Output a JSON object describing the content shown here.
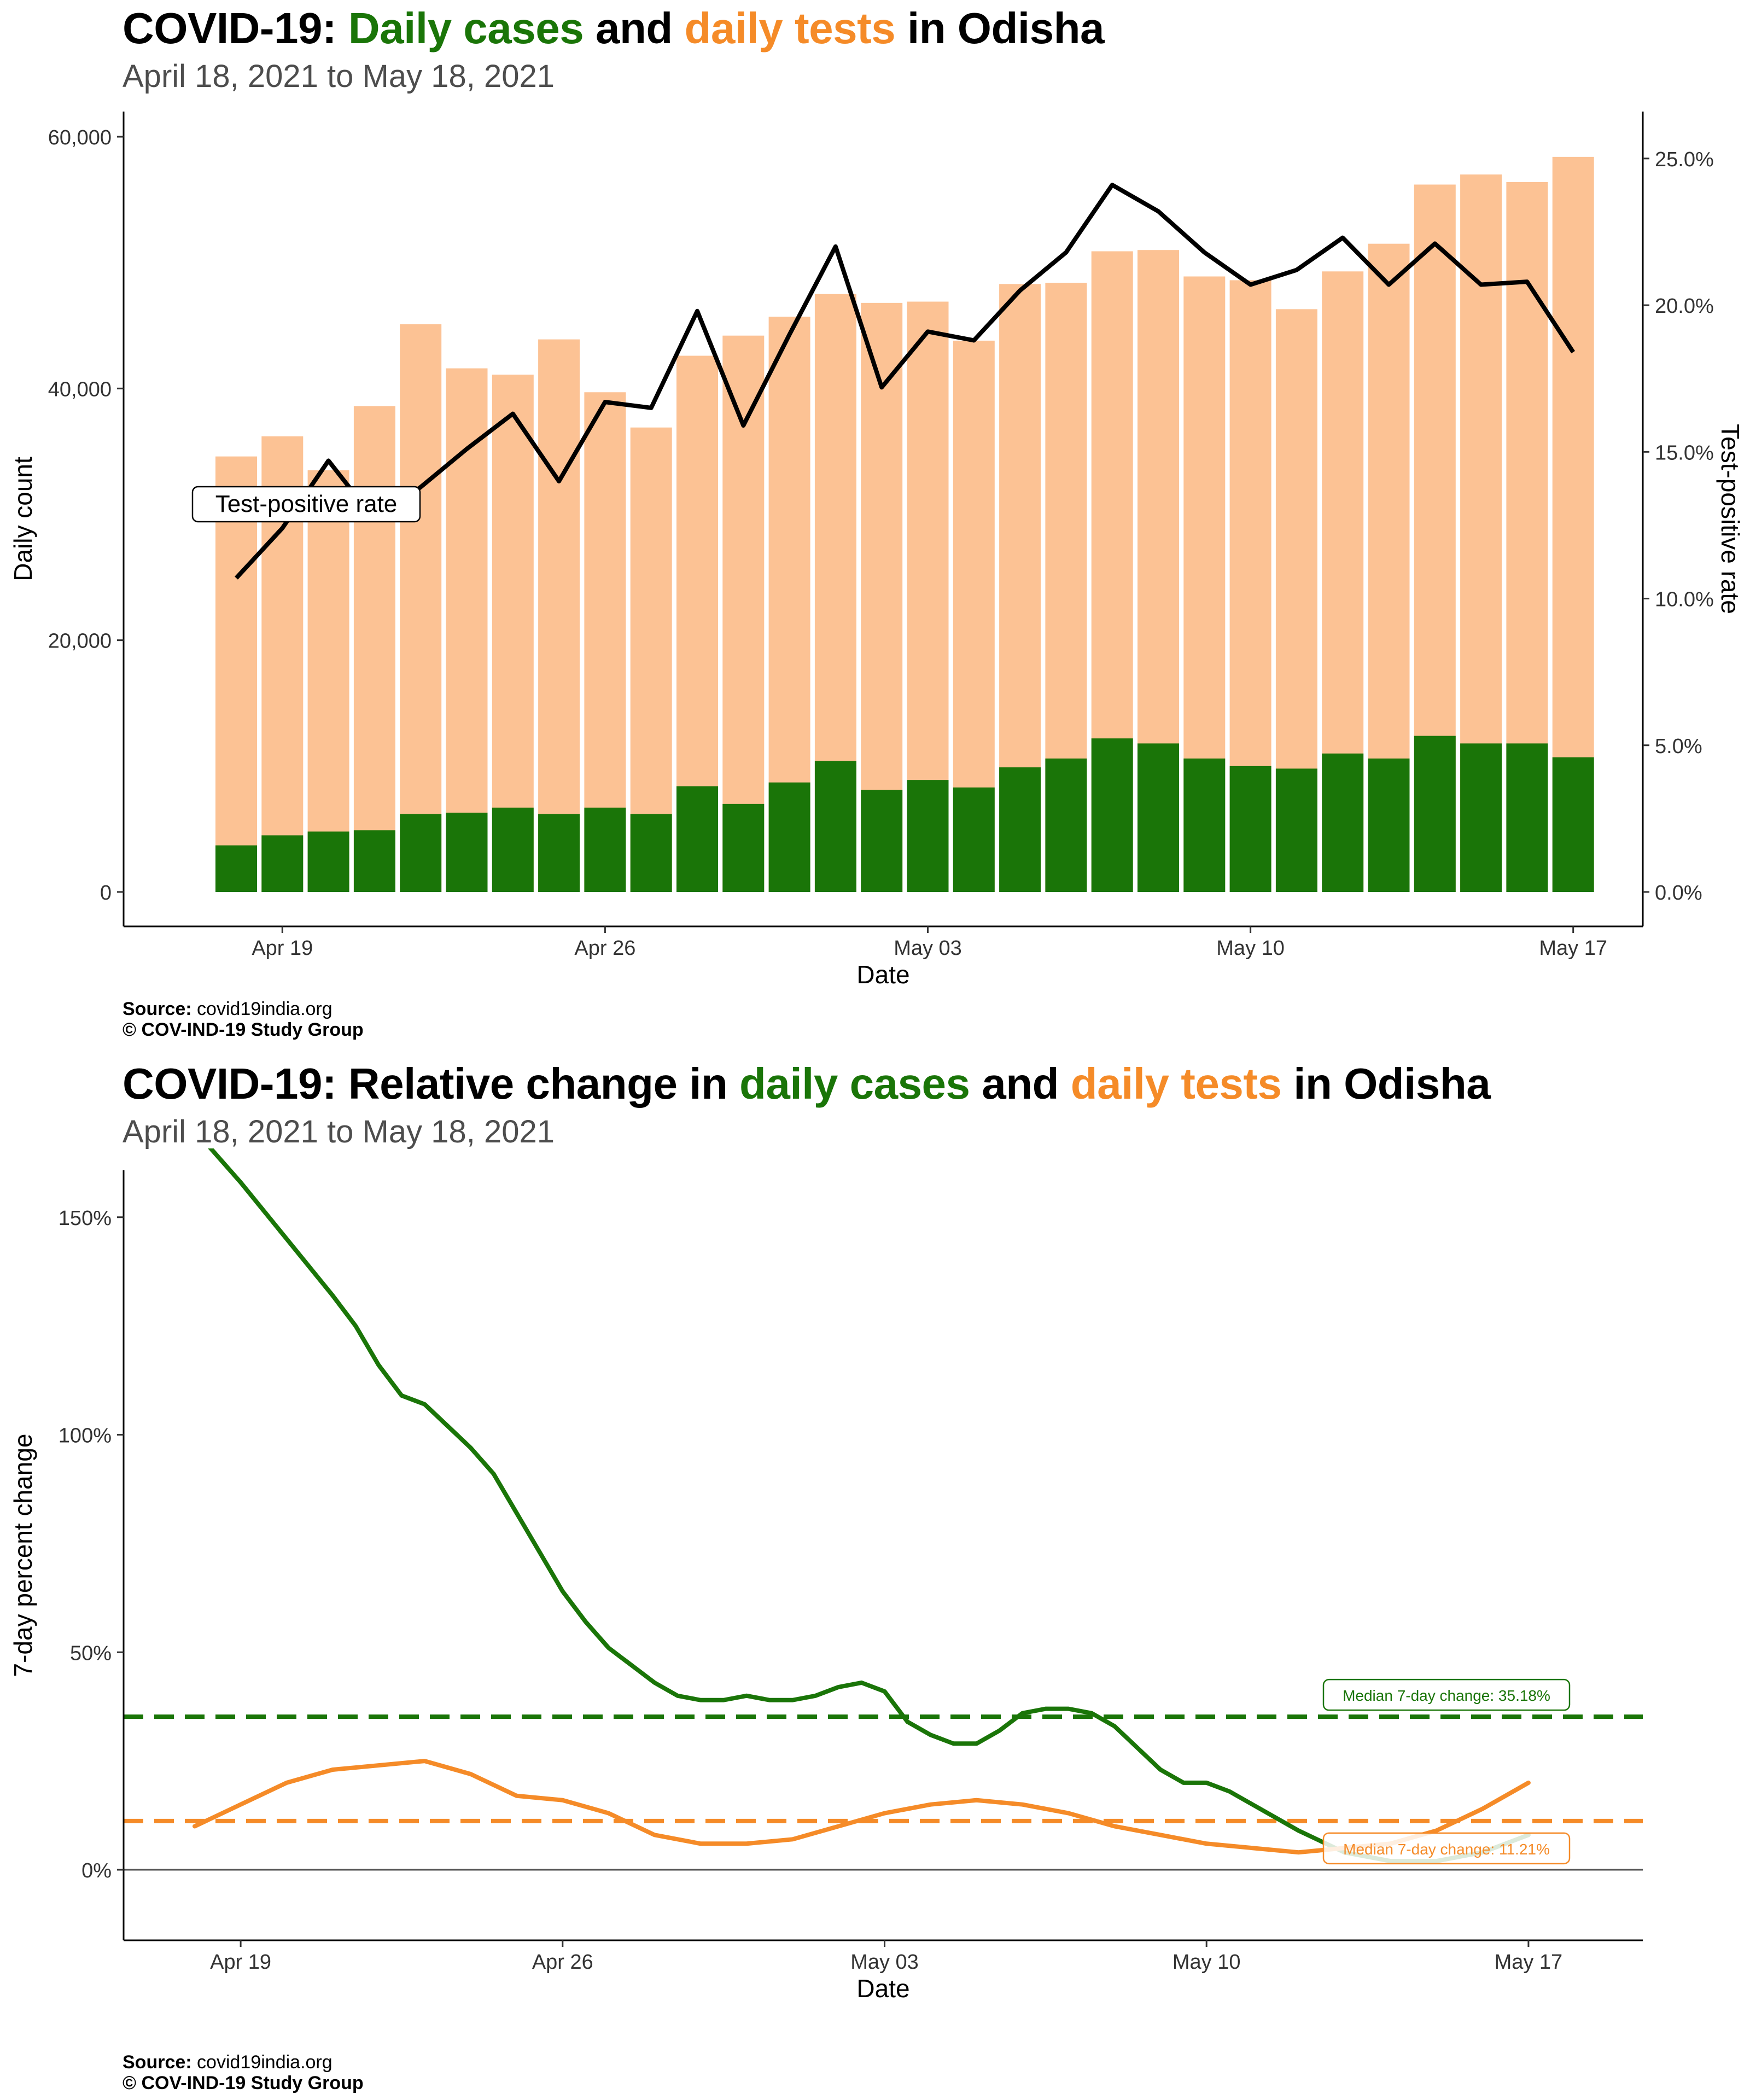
{
  "top": {
    "title": {
      "prefix": "COVID-19: ",
      "cases": "Daily cases",
      "and": " and ",
      "tests": "daily tests",
      "suffix": " in Odisha"
    },
    "subtitle": "April 18, 2021 to May 18, 2021",
    "source_label": "Source:",
    "source_value": "covid19india.org",
    "copyright": "© COV-IND-19 Study Group"
  },
  "bottom": {
    "title": {
      "prefix": "COVID-19: Relative change in ",
      "cases": "daily cases",
      "and": " and ",
      "tests": "daily tests",
      "suffix": " in Odisha"
    },
    "subtitle": "April 18, 2021 to May 18, 2021",
    "source_label": "Source:",
    "source_value": "covid19india.org",
    "copyright": "© COV-IND-19 Study Group"
  },
  "colors": {
    "cases": "#1a7508",
    "tests": "#fcc294",
    "tests_line": "#f58b28",
    "tpr": "#000000"
  },
  "chart_data": [
    {
      "type": "bar",
      "xlabel": "Date",
      "ylabel": "Daily count",
      "y2label": "Test-positive rate",
      "ylim": [
        0,
        62000
      ],
      "y2lim": [
        0,
        0.266
      ],
      "yticks": [
        0,
        20000,
        40000,
        60000
      ],
      "ytick_labels": [
        "0",
        "20,000",
        "40,000",
        "60,000"
      ],
      "y2ticks": [
        0,
        0.05,
        0.1,
        0.15,
        0.2,
        0.25
      ],
      "y2tick_labels": [
        "0.0%",
        "5.0%",
        "10.0%",
        "15.0%",
        "20.0%",
        "25.0%"
      ],
      "xticks": [
        "Apr 19",
        "Apr 26",
        "May 03",
        "May 10",
        "May 17"
      ],
      "annotation": "Test-positive rate",
      "dates": [
        "Apr 18",
        "Apr 19",
        "Apr 20",
        "Apr 21",
        "Apr 22",
        "Apr 23",
        "Apr 24",
        "Apr 25",
        "Apr 26",
        "Apr 27",
        "Apr 28",
        "Apr 29",
        "Apr 30",
        "May 01",
        "May 02",
        "May 03",
        "May 04",
        "May 05",
        "May 06",
        "May 07",
        "May 08",
        "May 09",
        "May 10",
        "May 11",
        "May 12",
        "May 13",
        "May 14",
        "May 15",
        "May 16",
        "May 17"
      ],
      "series": [
        {
          "name": "daily tests",
          "type": "bar",
          "values": [
            34600,
            36200,
            33500,
            38600,
            45100,
            41600,
            41100,
            43900,
            39700,
            36900,
            42600,
            44200,
            45700,
            47500,
            46800,
            46900,
            43800,
            48300,
            48400,
            50900,
            51000,
            48900,
            48600,
            46300,
            49300,
            51500,
            56200,
            57000,
            56400,
            58400
          ]
        },
        {
          "name": "daily cases",
          "type": "bar",
          "values": [
            3700,
            4500,
            4800,
            4900,
            6200,
            6300,
            6700,
            6200,
            6700,
            6200,
            8400,
            7000,
            8700,
            10400,
            8100,
            8900,
            8300,
            9900,
            10600,
            12200,
            11800,
            10600,
            10000,
            9800,
            11000,
            10600,
            12400,
            11800,
            11800,
            10700
          ]
        },
        {
          "name": "Test-positive rate",
          "type": "line",
          "axis": "y2",
          "values": [
            0.107,
            0.124,
            0.147,
            0.127,
            0.138,
            0.151,
            0.163,
            0.14,
            0.167,
            0.165,
            0.198,
            0.159,
            0.19,
            0.22,
            0.172,
            0.191,
            0.188,
            0.205,
            0.218,
            0.241,
            0.232,
            0.218,
            0.207,
            0.212,
            0.223,
            0.207,
            0.221,
            0.207,
            0.208,
            0.184
          ]
        }
      ]
    },
    {
      "type": "line",
      "xlabel": "Date",
      "ylabel": "7-day percent change",
      "ylim": [
        -5,
        180
      ],
      "yticks": [
        0,
        50,
        100,
        150
      ],
      "ytick_labels": [
        "0%",
        "50%",
        "100%",
        "150%"
      ],
      "xticks": [
        "Apr 19",
        "Apr 26",
        "May 03",
        "May 10",
        "May 17"
      ],
      "series": [
        {
          "name": "daily cases",
          "x": [
            0,
            1,
            2,
            3,
            3.5,
            4,
            4.5,
            5,
            5.5,
            6,
            6.5,
            7,
            7.5,
            8,
            8.5,
            9,
            9.5,
            10,
            10.5,
            11,
            11.5,
            12,
            12.5,
            13,
            13.5,
            14,
            14.5,
            15,
            15.5,
            16,
            16.5,
            17,
            17.5,
            18,
            18.5,
            19,
            19.5,
            20,
            20.5,
            21,
            21.5,
            22,
            22.5,
            23,
            24,
            25,
            26,
            27,
            28,
            29
          ],
          "y": [
            170,
            158,
            145,
            132,
            125,
            116,
            109,
            107,
            102,
            97,
            91,
            82,
            73,
            64,
            57,
            51,
            47,
            43,
            40,
            39,
            39,
            40,
            39,
            39,
            40,
            42,
            43,
            41,
            34,
            31,
            29,
            29,
            32,
            36,
            37,
            37,
            36,
            33,
            28,
            23,
            20,
            20,
            18,
            15,
            9,
            4,
            2,
            2,
            4,
            8
          ]
        },
        {
          "name": "daily tests",
          "x": [
            0,
            1,
            2,
            3,
            4,
            5,
            6,
            7,
            8,
            9,
            10,
            11,
            12,
            13,
            14,
            15,
            16,
            17,
            18,
            19,
            20,
            21,
            22,
            23,
            24,
            25,
            26,
            27,
            28,
            29
          ],
          "y": [
            10,
            15,
            20,
            23,
            24,
            25,
            22,
            17,
            16,
            13,
            8,
            6,
            6,
            7,
            10,
            13,
            15,
            16,
            15,
            13,
            10,
            8,
            6,
            5,
            4,
            5,
            6,
            9,
            14,
            20
          ]
        }
      ],
      "reference_lines": [
        {
          "name": "Median 7-day change: 35.18%",
          "value": 35.18,
          "series": "daily cases"
        },
        {
          "name": "Median 7-day change: 11.21%",
          "value": 11.21,
          "series": "daily tests"
        }
      ]
    }
  ]
}
